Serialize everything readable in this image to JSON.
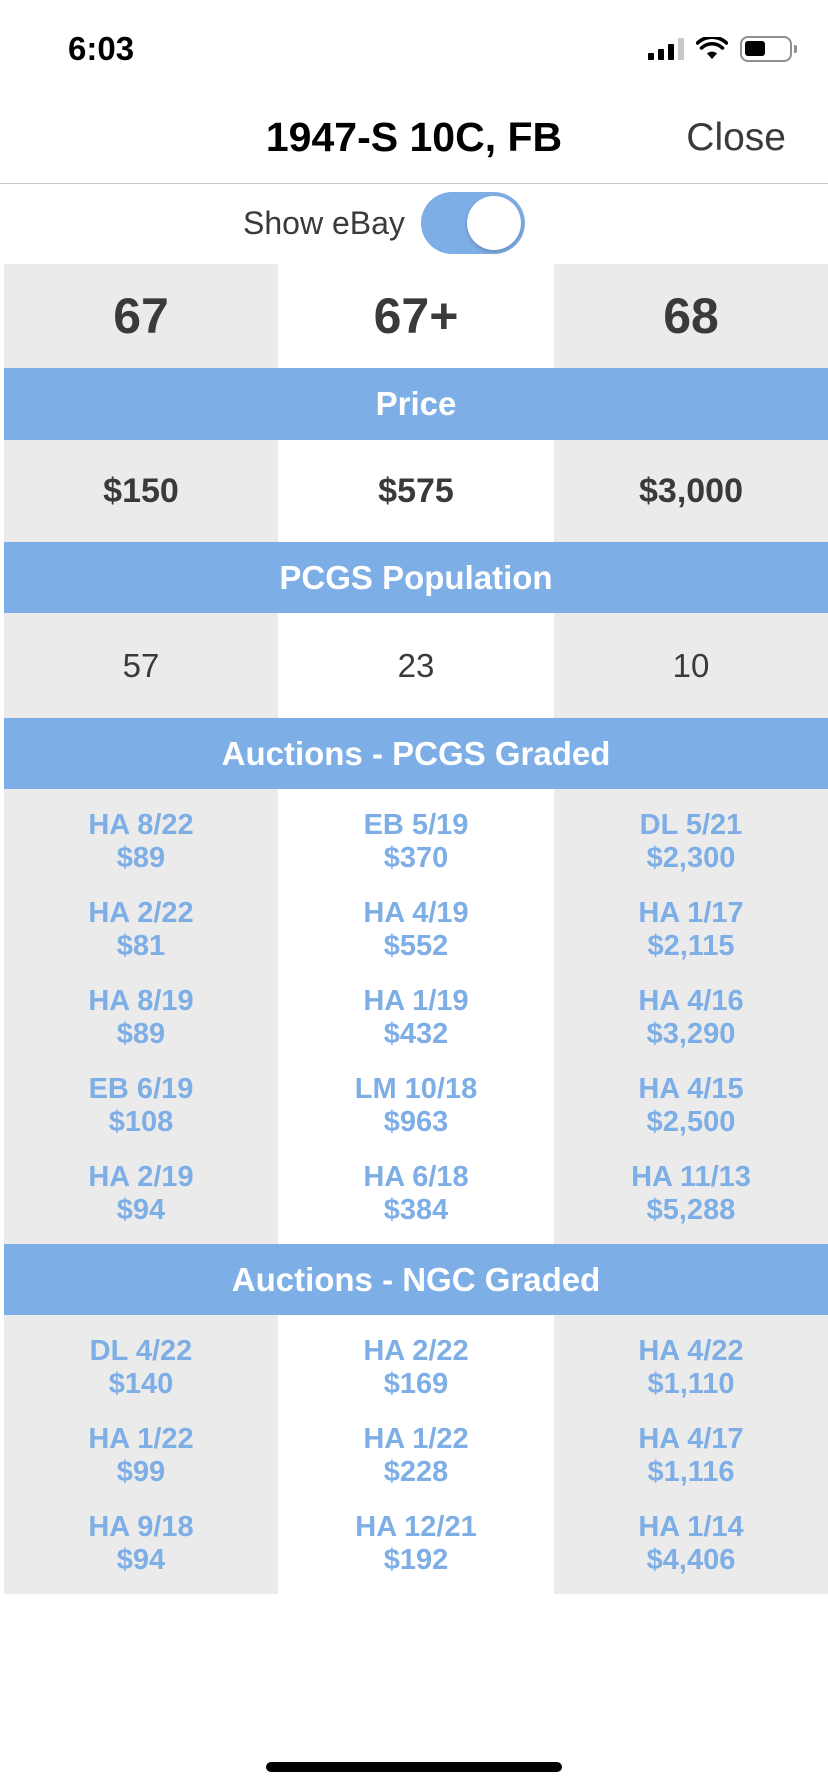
{
  "status": {
    "time": "6:03"
  },
  "nav": {
    "title": "1947-S 10C, FB",
    "close_label": "Close"
  },
  "ebay_toggle": {
    "label": "Show eBay",
    "on": true
  },
  "grades": [
    "67",
    "67+",
    "68"
  ],
  "sections": {
    "price": "Price",
    "population": "PCGS Population",
    "pcgs_auctions": "Auctions - PCGS Graded",
    "ngc_auctions": "Auctions - NGC Graded"
  },
  "prices": [
    "$150",
    "$575",
    "$3,000"
  ],
  "population": [
    "57",
    "23",
    "10"
  ],
  "pcgs_auctions": [
    [
      {
        "date": "HA 8/22",
        "price": "$89"
      },
      {
        "date": "HA 2/22",
        "price": "$81"
      },
      {
        "date": "HA 8/19",
        "price": "$89"
      },
      {
        "date": "EB 6/19",
        "price": "$108"
      },
      {
        "date": "HA 2/19",
        "price": "$94"
      }
    ],
    [
      {
        "date": "EB 5/19",
        "price": "$370"
      },
      {
        "date": "HA 4/19",
        "price": "$552"
      },
      {
        "date": "HA 1/19",
        "price": "$432"
      },
      {
        "date": "LM 10/18",
        "price": "$963"
      },
      {
        "date": "HA 6/18",
        "price": "$384"
      }
    ],
    [
      {
        "date": "DL 5/21",
        "price": "$2,300"
      },
      {
        "date": "HA 1/17",
        "price": "$2,115"
      },
      {
        "date": "HA 4/16",
        "price": "$3,290"
      },
      {
        "date": "HA 4/15",
        "price": "$2,500"
      },
      {
        "date": "HA 11/13",
        "price": "$5,288"
      }
    ]
  ],
  "ngc_auctions": [
    [
      {
        "date": "DL 4/22",
        "price": "$140"
      },
      {
        "date": "HA 1/22",
        "price": "$99"
      },
      {
        "date": "HA 9/18",
        "price": "$94"
      }
    ],
    [
      {
        "date": "HA 2/22",
        "price": "$169"
      },
      {
        "date": "HA 1/22",
        "price": "$228"
      },
      {
        "date": "HA 12/21",
        "price": "$192"
      }
    ],
    [
      {
        "date": "HA 4/22",
        "price": "$1,110"
      },
      {
        "date": "HA 4/17",
        "price": "$1,116"
      },
      {
        "date": "HA 1/14",
        "price": "$4,406"
      }
    ]
  ],
  "colors": {
    "accent": "#7eaee6",
    "cell_shade": "#ebebeb",
    "text_dark": "#3a3a3c"
  }
}
